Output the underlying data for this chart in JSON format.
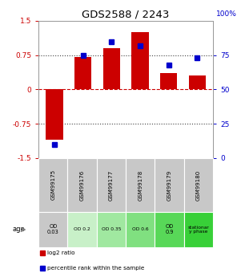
{
  "title": "GDS2588 / 2243",
  "samples": [
    "GSM99175",
    "GSM99176",
    "GSM99177",
    "GSM99178",
    "GSM99179",
    "GSM99180"
  ],
  "log2_ratio": [
    -1.1,
    0.7,
    0.9,
    1.25,
    0.35,
    0.3
  ],
  "percentile_rank": [
    10,
    75,
    85,
    82,
    68,
    73
  ],
  "ylim": [
    -1.5,
    1.5
  ],
  "y_ticks_left": [
    -1.5,
    -0.75,
    0,
    0.75,
    1.5
  ],
  "y_ticks_right_vals": [
    0,
    25,
    50,
    75
  ],
  "dotted_lines": [
    -0.75,
    0.75
  ],
  "zero_line": 0,
  "bar_color": "#cc0000",
  "dot_color": "#0000cc",
  "zero_line_color": "#cc0000",
  "dotted_color": "#404040",
  "sample_bg_color": "#c8c8c8",
  "age_labels": [
    "OD\n0.03",
    "OD 0.2",
    "OD 0.35",
    "OD 0.6",
    "OD\n0.9",
    "stationar\ny phase"
  ],
  "age_bg_colors": [
    "#c8c8c8",
    "#c8f0c8",
    "#a0e8a0",
    "#80e080",
    "#58d858",
    "#38d038"
  ],
  "legend_bar_label": "log2 ratio",
  "legend_dot_label": "percentile rank within the sample",
  "title_fontsize": 9.5,
  "tick_fontsize": 6.5,
  "bar_width": 0.6
}
